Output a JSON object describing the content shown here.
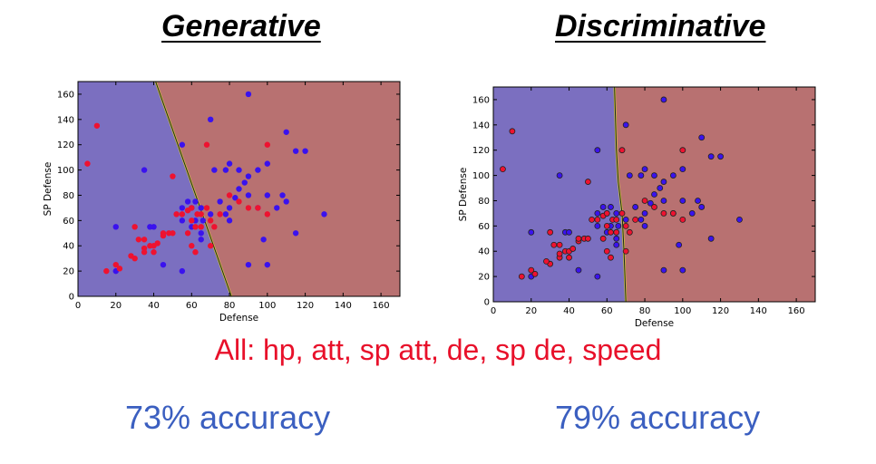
{
  "titles": {
    "left": "Generative",
    "right": "Discriminative"
  },
  "features_text": "All: hp, att, sp att, de, sp de, speed",
  "accuracy": {
    "left": "73% accuracy",
    "right": "79% accuracy"
  },
  "colors": {
    "blue_region": "#7b6fc0",
    "red_region": "#b87171",
    "blue_point": "#3a12ee",
    "red_point": "#ee1230",
    "features_text": "#e8102a",
    "accuracy_text": "#3b5fc0"
  },
  "chart_data": [
    {
      "type": "scatter",
      "title": "Generative",
      "xlabel": "Defense",
      "ylabel": "SP Defense",
      "xlim": [
        0,
        170
      ],
      "ylim": [
        0,
        170
      ],
      "xticks": [
        0,
        20,
        40,
        60,
        80,
        100,
        120,
        140,
        160
      ],
      "yticks": [
        0,
        20,
        40,
        60,
        80,
        100,
        120,
        140,
        160
      ],
      "grid": false,
      "decision_boundary": [
        [
          41,
          170
        ],
        [
          81,
          0
        ]
      ],
      "series": [
        {
          "color": "blue",
          "points": [
            [
              90,
              160
            ],
            [
              70,
              140
            ],
            [
              55,
              120
            ],
            [
              72,
              100
            ],
            [
              78,
              100
            ],
            [
              80,
              105
            ],
            [
              85,
              100
            ],
            [
              90,
              95
            ],
            [
              95,
              100
            ],
            [
              100,
              105
            ],
            [
              110,
              130
            ],
            [
              115,
              115
            ],
            [
              120,
              115
            ],
            [
              35,
              100
            ],
            [
              38,
              55
            ],
            [
              40,
              55
            ],
            [
              20,
              55
            ],
            [
              20,
              20
            ],
            [
              45,
              25
            ],
            [
              55,
              20
            ],
            [
              55,
              70
            ],
            [
              58,
              75
            ],
            [
              60,
              70
            ],
            [
              62,
              75
            ],
            [
              65,
              50
            ],
            [
              65,
              45
            ],
            [
              65,
              70
            ],
            [
              70,
              65
            ],
            [
              75,
              75
            ],
            [
              78,
              65
            ],
            [
              80,
              60
            ],
            [
              85,
              85
            ],
            [
              88,
              90
            ],
            [
              90,
              80
            ],
            [
              95,
              70
            ],
            [
              100,
              80
            ],
            [
              105,
              70
            ],
            [
              108,
              80
            ],
            [
              110,
              75
            ],
            [
              115,
              50
            ],
            [
              130,
              65
            ],
            [
              90,
              25
            ],
            [
              100,
              25
            ],
            [
              98,
              45
            ],
            [
              60,
              55
            ],
            [
              55,
              60
            ],
            [
              62,
              60
            ],
            [
              80,
              70
            ],
            [
              83,
              78
            ],
            [
              66,
              60
            ]
          ]
        },
        {
          "color": "red",
          "points": [
            [
              5,
              105
            ],
            [
              10,
              135
            ],
            [
              15,
              20
            ],
            [
              20,
              25
            ],
            [
              22,
              22
            ],
            [
              30,
              30
            ],
            [
              30,
              55
            ],
            [
              32,
              45
            ],
            [
              35,
              45
            ],
            [
              35,
              35
            ],
            [
              38,
              40
            ],
            [
              40,
              40
            ],
            [
              42,
              42
            ],
            [
              45,
              48
            ],
            [
              48,
              50
            ],
            [
              50,
              50
            ],
            [
              50,
              95
            ],
            [
              52,
              65
            ],
            [
              55,
              65
            ],
            [
              58,
              68
            ],
            [
              60,
              70
            ],
            [
              60,
              60
            ],
            [
              62,
              55
            ],
            [
              63,
              65
            ],
            [
              65,
              65
            ],
            [
              65,
              55
            ],
            [
              68,
              120
            ],
            [
              68,
              70
            ],
            [
              70,
              60
            ],
            [
              72,
              55
            ],
            [
              75,
              65
            ],
            [
              80,
              80
            ],
            [
              85,
              75
            ],
            [
              90,
              70
            ],
            [
              95,
              70
            ],
            [
              100,
              120
            ],
            [
              100,
              65
            ],
            [
              70,
              40
            ],
            [
              62,
              35
            ],
            [
              60,
              40
            ],
            [
              58,
              50
            ],
            [
              45,
              50
            ],
            [
              40,
              35
            ],
            [
              35,
              38
            ],
            [
              28,
              32
            ]
          ]
        }
      ]
    },
    {
      "type": "scatter",
      "title": "Discriminative",
      "xlabel": "Defense",
      "ylabel": "SP Defense",
      "xlim": [
        0,
        170
      ],
      "ylim": [
        0,
        170
      ],
      "xticks": [
        0,
        20,
        40,
        60,
        80,
        100,
        120,
        140,
        160
      ],
      "yticks": [
        0,
        20,
        40,
        60,
        80,
        100,
        120,
        140,
        160
      ],
      "grid": false,
      "decision_boundary": [
        [
          64,
          170
        ],
        [
          65,
          120
        ],
        [
          66,
          95
        ],
        [
          68,
          70
        ],
        [
          69,
          40
        ],
        [
          70,
          0
        ]
      ],
      "series": [
        {
          "color": "blue",
          "points": [
            [
              90,
              160
            ],
            [
              70,
              140
            ],
            [
              55,
              120
            ],
            [
              72,
              100
            ],
            [
              78,
              100
            ],
            [
              80,
              105
            ],
            [
              85,
              100
            ],
            [
              90,
              95
            ],
            [
              95,
              100
            ],
            [
              100,
              105
            ],
            [
              110,
              130
            ],
            [
              115,
              115
            ],
            [
              120,
              115
            ],
            [
              35,
              100
            ],
            [
              38,
              55
            ],
            [
              40,
              55
            ],
            [
              20,
              55
            ],
            [
              20,
              20
            ],
            [
              45,
              25
            ],
            [
              55,
              20
            ],
            [
              55,
              70
            ],
            [
              58,
              75
            ],
            [
              60,
              70
            ],
            [
              62,
              75
            ],
            [
              65,
              50
            ],
            [
              65,
              45
            ],
            [
              65,
              70
            ],
            [
              70,
              65
            ],
            [
              75,
              75
            ],
            [
              78,
              65
            ],
            [
              80,
              60
            ],
            [
              85,
              85
            ],
            [
              88,
              90
            ],
            [
              90,
              80
            ],
            [
              95,
              70
            ],
            [
              100,
              80
            ],
            [
              105,
              70
            ],
            [
              108,
              80
            ],
            [
              110,
              75
            ],
            [
              115,
              50
            ],
            [
              130,
              65
            ],
            [
              90,
              25
            ],
            [
              100,
              25
            ],
            [
              98,
              45
            ],
            [
              60,
              55
            ],
            [
              55,
              60
            ],
            [
              62,
              60
            ],
            [
              80,
              70
            ],
            [
              83,
              78
            ],
            [
              66,
              60
            ]
          ]
        },
        {
          "color": "red",
          "points": [
            [
              5,
              105
            ],
            [
              10,
              135
            ],
            [
              15,
              20
            ],
            [
              20,
              25
            ],
            [
              22,
              22
            ],
            [
              30,
              30
            ],
            [
              30,
              55
            ],
            [
              32,
              45
            ],
            [
              35,
              45
            ],
            [
              35,
              35
            ],
            [
              38,
              40
            ],
            [
              40,
              40
            ],
            [
              42,
              42
            ],
            [
              45,
              48
            ],
            [
              48,
              50
            ],
            [
              50,
              50
            ],
            [
              50,
              95
            ],
            [
              52,
              65
            ],
            [
              55,
              65
            ],
            [
              58,
              68
            ],
            [
              60,
              70
            ],
            [
              60,
              60
            ],
            [
              62,
              55
            ],
            [
              63,
              65
            ],
            [
              65,
              65
            ],
            [
              65,
              55
            ],
            [
              68,
              120
            ],
            [
              68,
              70
            ],
            [
              70,
              60
            ],
            [
              72,
              55
            ],
            [
              75,
              65
            ],
            [
              80,
              80
            ],
            [
              85,
              75
            ],
            [
              90,
              70
            ],
            [
              95,
              70
            ],
            [
              100,
              120
            ],
            [
              100,
              65
            ],
            [
              70,
              40
            ],
            [
              62,
              35
            ],
            [
              60,
              40
            ],
            [
              58,
              50
            ],
            [
              45,
              50
            ],
            [
              40,
              35
            ],
            [
              35,
              38
            ],
            [
              28,
              32
            ]
          ]
        }
      ]
    }
  ]
}
